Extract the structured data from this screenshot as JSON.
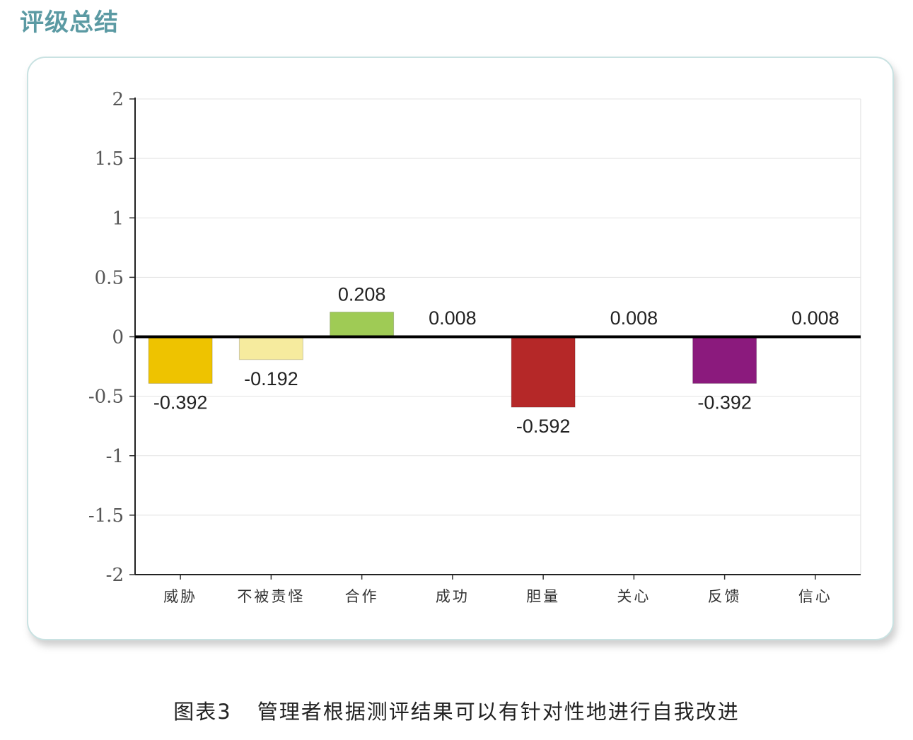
{
  "header": {
    "title": "评级总结"
  },
  "caption": {
    "figure": "图表3",
    "text": "管理者根据测评结果可以有针对性地进行自我改进"
  },
  "chart_data": {
    "type": "bar",
    "categories": [
      "威胁",
      "不被责怪",
      "合作",
      "成功",
      "胆量",
      "关心",
      "反馈",
      "信心"
    ],
    "values": [
      -0.392,
      -0.192,
      0.208,
      0.008,
      -0.592,
      0.008,
      -0.392,
      0.008
    ],
    "value_labels": [
      "-0.392",
      "-0.192",
      "0.208",
      "0.008",
      "-0.592",
      "0.008",
      "-0.392",
      "0.008"
    ],
    "colors": [
      "#eec300",
      "#f6eb9e",
      "#9fcb55",
      "#a8a8a8",
      "#b52828",
      "#9a9a9a",
      "#8b1a7d",
      "#6d6bb0"
    ],
    "y_ticks": [
      "2",
      "1.5",
      "1",
      "0.5",
      "0",
      "-0.5",
      "-1",
      "-1.5",
      "-2"
    ],
    "y_tick_values": [
      2,
      1.5,
      1,
      0.5,
      0,
      -0.5,
      -1,
      -1.5,
      -2
    ],
    "ylim": [
      -2,
      2
    ],
    "grid": true,
    "title": "",
    "xlabel": "",
    "ylabel": ""
  }
}
